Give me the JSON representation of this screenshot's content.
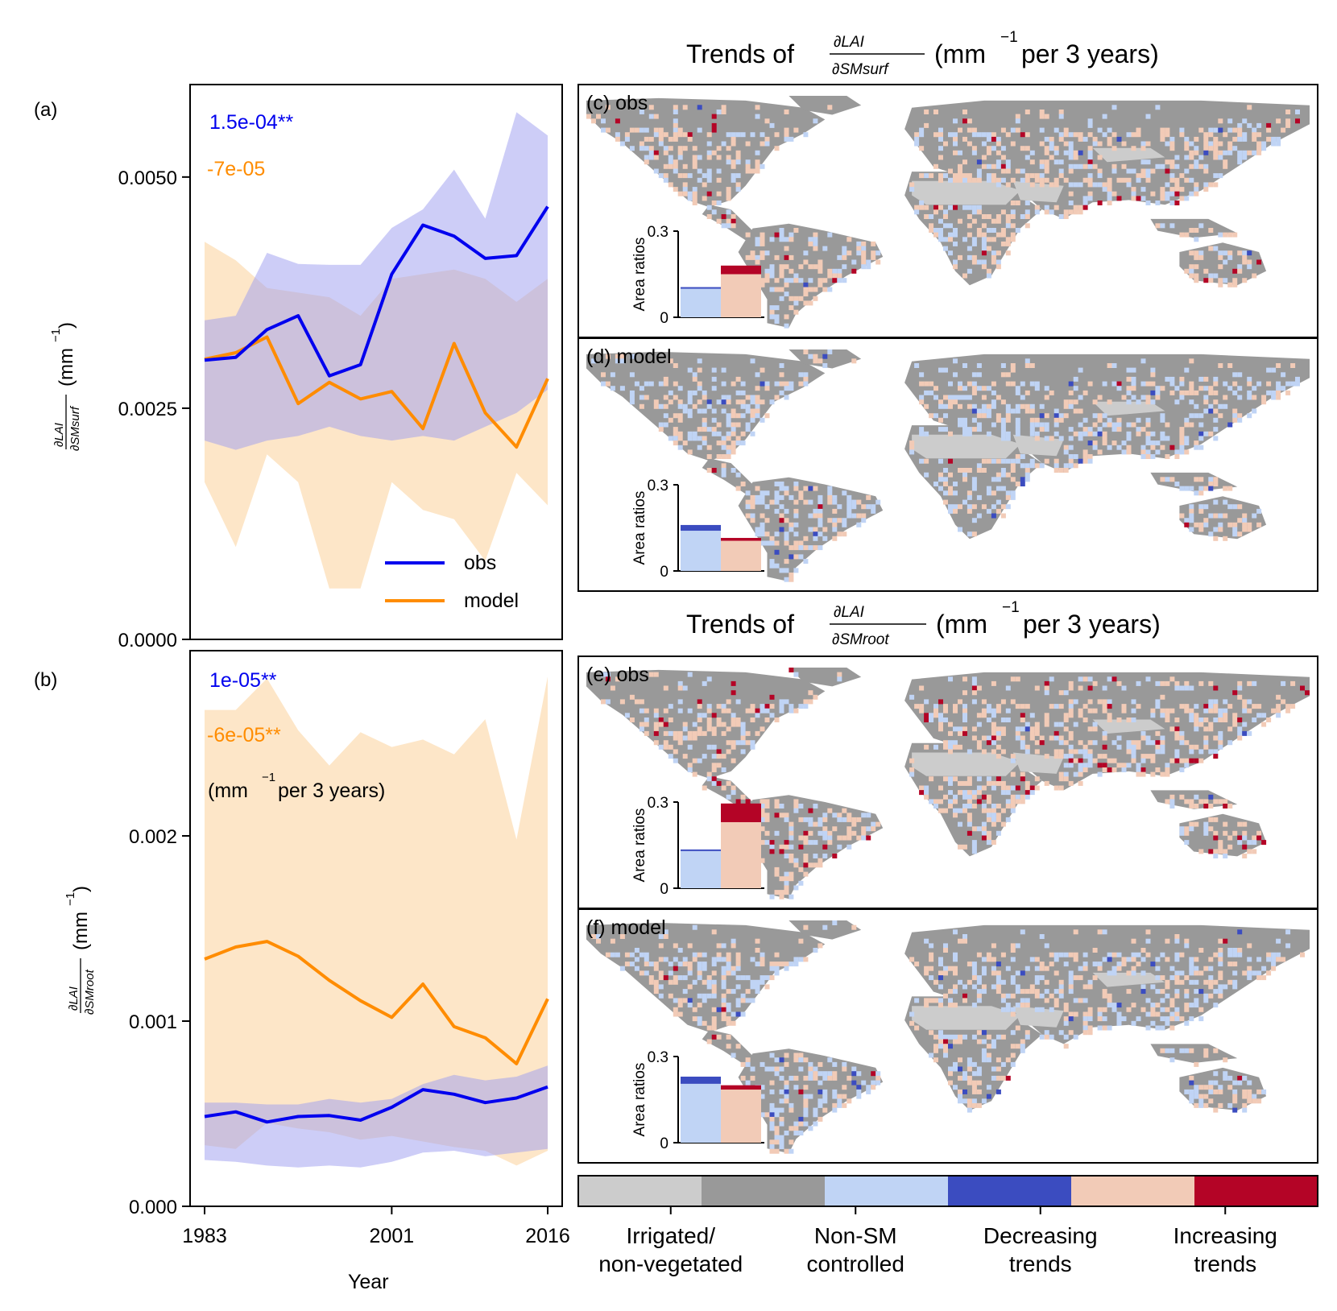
{
  "chart_data": [
    {
      "panel": "(a)",
      "type": "line",
      "ylabel_math": "∂LAI / ∂SMsurf",
      "ylabel_unit": "(mm",
      "ylabel_exp": "−1",
      "ylabel_close": ")",
      "yticks": [
        "0.0000",
        "0.0025",
        "0.0050"
      ],
      "ytick_values": [
        0,
        0.0025,
        0.005
      ],
      "ylim": [
        0,
        0.006
      ],
      "x": [
        1983,
        1986,
        1989,
        1992,
        1995,
        1998,
        2001,
        2004,
        2007,
        2010,
        2013,
        2016
      ],
      "series": [
        {
          "name": "obs",
          "color": "#0000ee",
          "band_color": "#c8c8fa",
          "values": [
            0.00302,
            0.00305,
            0.00335,
            0.0035,
            0.00285,
            0.00297,
            0.00395,
            0.00448,
            0.00436,
            0.00412,
            0.00415,
            0.00468
          ],
          "upper": [
            0.00345,
            0.0035,
            0.00418,
            0.00406,
            0.00405,
            0.00405,
            0.00445,
            0.00465,
            0.00508,
            0.00455,
            0.0057,
            0.00545
          ],
          "lower": [
            0.00215,
            0.00205,
            0.00215,
            0.0022,
            0.0023,
            0.0022,
            0.00215,
            0.0022,
            0.00215,
            0.0023,
            0.00245,
            0.0027
          ]
        },
        {
          "name": "model",
          "color": "#ff8c00",
          "band_color": "#fde6c8",
          "values": [
            0.00303,
            0.0031,
            0.00327,
            0.00255,
            0.00278,
            0.0026,
            0.00268,
            0.00228,
            0.0032,
            0.00245,
            0.00208,
            0.00282
          ],
          "upper": [
            0.0043,
            0.0041,
            0.0038,
            0.00375,
            0.0037,
            0.0035,
            0.0039,
            0.00395,
            0.004,
            0.0039,
            0.00365,
            0.0039
          ],
          "lower": [
            0.0017,
            0.001,
            0.002,
            0.0017,
            0.00055,
            0.00055,
            0.0017,
            0.0014,
            0.0013,
            0.00085,
            0.0018,
            0.00145
          ]
        }
      ],
      "annotations": [
        {
          "text": "1.5e-04**",
          "color": "#0000ee"
        },
        {
          "text": "-7e-05",
          "color": "#ff8c00"
        }
      ],
      "legend": [
        "obs",
        "model"
      ],
      "legend_position": "lower-right"
    },
    {
      "panel": "(b)",
      "type": "line",
      "ylabel_math": "∂LAI / ∂SMroot",
      "ylabel_unit": "(mm",
      "ylabel_exp": "−1",
      "ylabel_close": ")",
      "yticks": [
        "0.000",
        "0.001",
        "0.002"
      ],
      "ytick_values": [
        0,
        0.001,
        0.002
      ],
      "ylim": [
        0,
        0.003
      ],
      "xlabel": "Year",
      "xticks": [
        "1983",
        "2001",
        "2016"
      ],
      "xtick_values": [
        1983,
        2001,
        2016
      ],
      "x": [
        1983,
        1986,
        1989,
        1992,
        1995,
        1998,
        2001,
        2004,
        2007,
        2010,
        2013,
        2016
      ],
      "series": [
        {
          "name": "obs",
          "color": "#0000ee",
          "band_color": "#c8c8fa",
          "values": [
            0.000485,
            0.00051,
            0.000455,
            0.000485,
            0.00049,
            0.000465,
            0.000535,
            0.00063,
            0.000605,
            0.00056,
            0.000585,
            0.000645
          ],
          "upper": [
            0.00056,
            0.00056,
            0.00055,
            0.00055,
            0.00058,
            0.00056,
            0.00058,
            0.00066,
            0.00071,
            0.00068,
            0.0007,
            0.00076
          ],
          "lower": [
            0.00025,
            0.00024,
            0.00022,
            0.00021,
            0.00022,
            0.00021,
            0.00024,
            0.00029,
            0.0003,
            0.00027,
            0.00029,
            0.00031
          ]
        },
        {
          "name": "model",
          "color": "#ff8c00",
          "band_color": "#fde6c8",
          "values": [
            0.001335,
            0.0014,
            0.00143,
            0.00135,
            0.00122,
            0.00111,
            0.00102,
            0.0012,
            0.00097,
            0.00091,
            0.00077,
            0.00112
          ],
          "upper": [
            0.00268,
            0.00268,
            0.00285,
            0.00257,
            0.00238,
            0.00256,
            0.00248,
            0.00252,
            0.00244,
            0.00263,
            0.00198,
            0.00286
          ],
          "lower": [
            0.00033,
            0.00031,
            0.00045,
            0.00042,
            0.0004,
            0.00036,
            0.00038,
            0.00035,
            0.00032,
            0.0003,
            0.00022,
            0.0003
          ]
        }
      ],
      "annotations": [
        {
          "text": "1e-05**",
          "color": "#0000ee"
        },
        {
          "text": "-6e-05**",
          "color": "#ff8c00"
        }
      ],
      "unit_note": {
        "pre": "(mm",
        "exp": "−1",
        "post": " per 3 years)"
      }
    },
    {
      "type": "bar",
      "panel": "(c) obs",
      "title_pre": "Trends of",
      "title_num": "∂LAI",
      "title_den": "∂SMsurf",
      "title_unit": "(mm",
      "title_exp": "−1",
      "title_post": " per 3 years)",
      "ylabel": "Area ratios",
      "yticks": [
        "0",
        "0.3"
      ],
      "ylim": [
        0,
        0.3
      ],
      "categories": [
        "Decreasing trends",
        "Increasing trends"
      ],
      "series": [
        {
          "name": "Decreasing trends",
          "values": [
            0.1,
            0.0
          ],
          "significant": [
            0.005,
            0.0
          ]
        },
        {
          "name": "Increasing trends",
          "values": [
            0.0,
            0.15
          ],
          "significant": [
            0.0,
            0.03
          ]
        }
      ]
    },
    {
      "type": "bar",
      "panel": "(d) model",
      "ylabel": "Area ratios",
      "yticks": [
        "0",
        "0.3"
      ],
      "ylim": [
        0,
        0.3
      ],
      "categories": [
        "Decreasing trends",
        "Increasing trends"
      ],
      "series": [
        {
          "name": "Decreasing trends",
          "values": [
            0.14,
            0.0
          ],
          "significant": [
            0.02,
            0.0
          ]
        },
        {
          "name": "Increasing trends",
          "values": [
            0.0,
            0.105
          ],
          "significant": [
            0.0,
            0.01
          ]
        }
      ]
    },
    {
      "type": "bar",
      "panel": "(e) obs",
      "title_pre": "Trends of",
      "title_num": "∂LAI",
      "title_den": "∂SMroot",
      "title_unit": "(mm",
      "title_exp": "−1",
      "title_post": " per 3 years)",
      "ylabel": "Area ratios",
      "yticks": [
        "0",
        "0.3"
      ],
      "ylim": [
        0,
        0.3
      ],
      "categories": [
        "Decreasing trends",
        "Increasing trends"
      ],
      "series": [
        {
          "name": "Decreasing trends",
          "values": [
            0.13,
            0.0
          ],
          "significant": [
            0.005,
            0.0
          ]
        },
        {
          "name": "Increasing trends",
          "values": [
            0.0,
            0.23
          ],
          "significant": [
            0.0,
            0.065
          ]
        }
      ]
    },
    {
      "type": "bar",
      "panel": "(f) model",
      "ylabel": "Area ratios",
      "yticks": [
        "0",
        "0.3"
      ],
      "ylim": [
        0,
        0.3
      ],
      "categories": [
        "Decreasing trends",
        "Increasing trends"
      ],
      "series": [
        {
          "name": "Decreasing trends",
          "values": [
            0.205,
            0.0
          ],
          "significant": [
            0.025,
            0.0
          ]
        },
        {
          "name": "Increasing trends",
          "values": [
            0.0,
            0.185
          ],
          "significant": [
            0.0,
            0.015
          ]
        }
      ]
    }
  ],
  "map_colorbar": {
    "labels": [
      {
        "line1": "Irrigated/",
        "line2": "non-vegetated"
      },
      {
        "line1": "Non-SM",
        "line2": "controlled"
      },
      {
        "line1": "Decreasing",
        "line2": "trends"
      },
      {
        "line1": "Increasing",
        "line2": "trends"
      }
    ],
    "colors": [
      "#cccccc",
      "#999999",
      "#c0d4f5",
      "#3b4cc0",
      "#f2cbb7",
      "#b40426"
    ]
  },
  "panel_labels": {
    "a": "(a)",
    "b": "(b)"
  },
  "colors": {
    "obs": "#0000ee",
    "model": "#ff8c00",
    "obs_band": "#c8c8fa",
    "model_band": "#fde6c8",
    "land": "#999999",
    "desert": "#cccccc",
    "dec": "#c0d4f5",
    "dec_sig": "#3b4cc0",
    "inc": "#f2cbb7",
    "inc_sig": "#b40426"
  }
}
